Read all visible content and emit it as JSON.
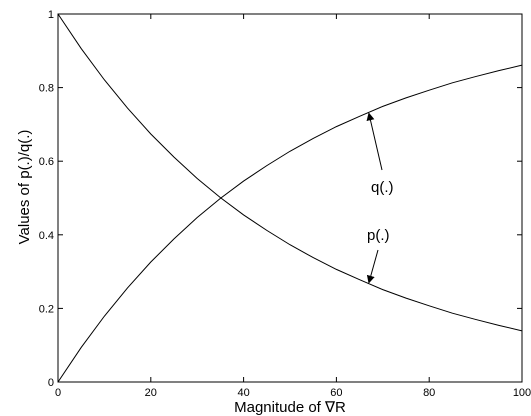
{
  "chart_data": {
    "type": "line",
    "title": "",
    "xlabel": "Magnitude of ∇R",
    "ylabel": "Values of p(.)/q(.)",
    "xlim": [
      0,
      100
    ],
    "ylim": [
      0,
      1
    ],
    "grid": false,
    "legend": "none",
    "x_ticks": [
      "0",
      "20",
      "40",
      "60",
      "80",
      "100"
    ],
    "y_ticks": [
      "0",
      "0.2",
      "0.4",
      "0.6",
      "0.8",
      "1"
    ],
    "x": [
      0,
      5,
      10,
      15,
      20,
      25,
      30,
      35,
      40,
      45,
      50,
      55,
      60,
      65,
      70,
      75,
      80,
      85,
      90,
      95,
      100
    ],
    "series": [
      {
        "name": "p(.)",
        "values": [
          1.0,
          0.906,
          0.821,
          0.744,
          0.674,
          0.611,
          0.553,
          0.501,
          0.454,
          0.412,
          0.373,
          0.338,
          0.306,
          0.278,
          0.251,
          0.228,
          0.207,
          0.187,
          0.17,
          0.154,
          0.139
        ],
        "color": "#000000"
      },
      {
        "name": "q(.)",
        "values": [
          0.0,
          0.094,
          0.179,
          0.256,
          0.326,
          0.389,
          0.447,
          0.499,
          0.546,
          0.588,
          0.627,
          0.662,
          0.694,
          0.722,
          0.749,
          0.772,
          0.793,
          0.813,
          0.83,
          0.846,
          0.861
        ],
        "color": "#000000"
      }
    ],
    "annotations": [
      {
        "text": "q(.)",
        "points_to": {
          "series": "q(.)",
          "x": 67,
          "y": 0.73
        }
      },
      {
        "text": "p(.)",
        "points_to": {
          "series": "p(.)",
          "x": 67,
          "y": 0.27
        }
      }
    ]
  }
}
